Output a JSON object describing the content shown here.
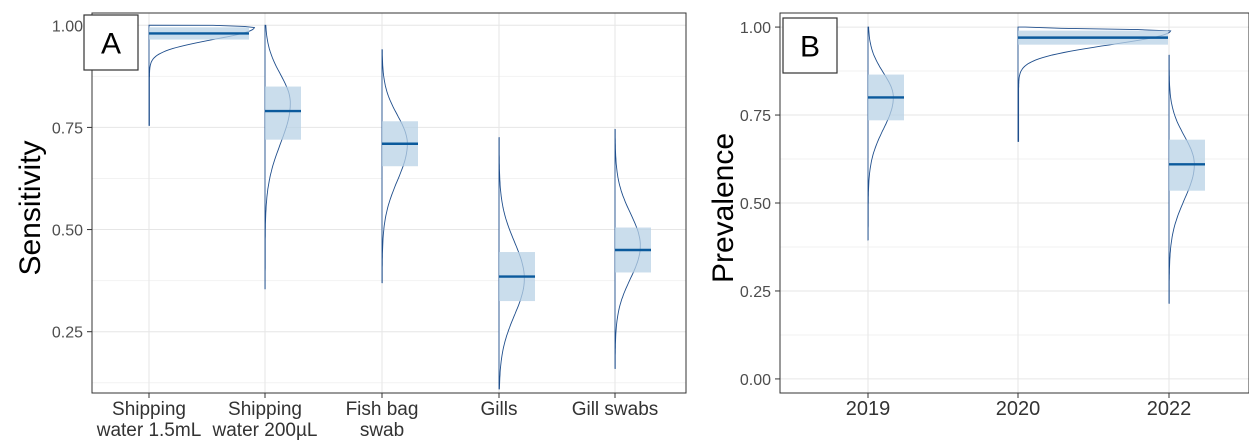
{
  "chart_data": [
    {
      "panel": "A",
      "type": "half-violin",
      "ylabel": "Sensitivity",
      "ylim": [
        0.1,
        1.03
      ],
      "yticks": [
        0.25,
        0.5,
        0.75,
        1.0
      ],
      "ytick_labels": [
        "0.25",
        "0.50",
        "0.75",
        "1.00"
      ],
      "grid": true,
      "categories": [
        {
          "label_lines": [
            "Shipping",
            "water 1.5mL"
          ],
          "median": 0.98,
          "ci": [
            0.965,
            0.995
          ],
          "min": 0.755,
          "mode": 0.995,
          "sd_low": 0.03,
          "sd_high": 0.005,
          "amp": 1.0
        },
        {
          "label_lines": [
            "Shipping",
            "water 200µL"
          ],
          "median": 0.79,
          "ci": [
            0.72,
            0.85
          ],
          "min": 0.355,
          "max": 1.0,
          "mode": 0.81,
          "sd_low": 0.1,
          "sd_high": 0.07,
          "amp": 0.7
        },
        {
          "label_lines": [
            "Fish bag",
            "swab"
          ],
          "median": 0.71,
          "ci": [
            0.655,
            0.765
          ],
          "min": 0.37,
          "max": 0.94,
          "mode": 0.71,
          "sd_low": 0.09,
          "sd_high": 0.07,
          "amp": 0.7
        },
        {
          "label_lines": [
            "Gills"
          ],
          "median": 0.385,
          "ci": [
            0.325,
            0.445
          ],
          "min": 0.11,
          "max": 0.725,
          "mode": 0.38,
          "sd_low": 0.09,
          "sd_high": 0.09,
          "amp": 0.7
        },
        {
          "label_lines": [
            "Gill swabs"
          ],
          "median": 0.45,
          "ci": [
            0.395,
            0.505
          ],
          "min": 0.16,
          "max": 0.745,
          "mode": 0.46,
          "sd_low": 0.08,
          "sd_high": 0.08,
          "amp": 0.7
        }
      ]
    },
    {
      "panel": "B",
      "type": "half-violin",
      "ylabel": "Prevalence",
      "ylim": [
        -0.04,
        1.04
      ],
      "yticks": [
        0.0,
        0.25,
        0.5,
        0.75,
        1.0
      ],
      "ytick_labels": [
        "0.00",
        "0.25",
        "0.50",
        "0.75",
        "1.00"
      ],
      "grid": true,
      "categories": [
        {
          "label_lines": [
            "2019"
          ],
          "median": 0.8,
          "ci": [
            0.735,
            0.865
          ],
          "min": 0.395,
          "max": 1.0,
          "mode": 0.8,
          "sd_low": 0.09,
          "sd_high": 0.07,
          "amp": 0.7
        },
        {
          "label_lines": [
            "2020"
          ],
          "median": 0.97,
          "ci": [
            0.95,
            0.99
          ],
          "min": 0.675,
          "mode": 0.99,
          "sd_low": 0.04,
          "sd_high": 0.004,
          "amp": 1.0
        },
        {
          "label_lines": [
            "2022"
          ],
          "median": 0.61,
          "ci": [
            0.535,
            0.68
          ],
          "min": 0.215,
          "max": 0.92,
          "mode": 0.61,
          "sd_low": 0.1,
          "sd_high": 0.08,
          "amp": 0.7
        }
      ]
    }
  ]
}
